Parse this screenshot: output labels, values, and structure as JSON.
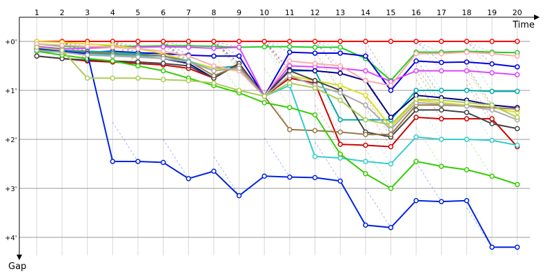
{
  "chart_data": {
    "type": "line",
    "xlabel": "Time",
    "ylabel": "Gap",
    "x_ticks": [
      "1",
      "2",
      "3",
      "4",
      "5",
      "6",
      "7",
      "8",
      "9",
      "10",
      "11",
      "12",
      "13",
      "14",
      "15",
      "16",
      "17",
      "18",
      "19",
      "20"
    ],
    "y_ticks": [
      "+0'",
      "+1'",
      "+2'",
      "+3'",
      "+4'"
    ],
    "ylim": [
      0,
      4.4
    ],
    "grid": true,
    "legend": "none",
    "series": [
      {
        "color": "#ff0000",
        "values": [
          0.0,
          0.0,
          0.0,
          0.0,
          0.0,
          0.0,
          0.0,
          0.0,
          0.0,
          0.0,
          0.0,
          0.0,
          0.0,
          0.0,
          0.0,
          0.0,
          0.0,
          0.0,
          0.0,
          0.0
        ]
      },
      {
        "color": "#22cc22",
        "values": [
          0.05,
          0.1,
          0.11,
          0.1,
          0.1,
          0.09,
          0.09,
          0.1,
          0.12,
          0.11,
          0.11,
          0.12,
          0.12,
          0.35,
          0.8,
          0.22,
          0.22,
          0.2,
          0.22,
          0.23
        ]
      },
      {
        "color": "#0000dd",
        "values": [
          0.15,
          0.2,
          0.22,
          0.2,
          0.23,
          0.25,
          0.28,
          0.3,
          0.3,
          1.12,
          0.22,
          0.24,
          0.24,
          0.3,
          1.0,
          0.4,
          0.43,
          0.42,
          0.46,
          0.52
        ]
      },
      {
        "color": "#dd44ff",
        "values": [
          0.1,
          0.15,
          0.14,
          0.12,
          0.12,
          0.11,
          0.12,
          0.14,
          0.12,
          1.12,
          0.5,
          0.52,
          0.55,
          0.6,
          0.82,
          0.6,
          0.6,
          0.6,
          0.64,
          0.68
        ]
      },
      {
        "color": "#00aaaa",
        "values": [
          0.12,
          0.18,
          0.2,
          0.22,
          0.25,
          0.3,
          0.4,
          0.55,
          0.5,
          1.12,
          0.6,
          0.6,
          1.6,
          1.6,
          1.6,
          1.0,
          1.0,
          1.0,
          1.02,
          1.02
        ]
      },
      {
        "color": "#000088",
        "values": [
          0.15,
          0.22,
          0.25,
          0.25,
          0.3,
          0.35,
          0.45,
          0.75,
          0.45,
          1.12,
          0.58,
          0.6,
          0.65,
          0.8,
          1.55,
          1.1,
          1.15,
          1.2,
          1.3,
          1.35
        ]
      },
      {
        "color": "#dddd22",
        "values": [
          0.0,
          0.02,
          0.05,
          0.08,
          0.15,
          0.25,
          0.4,
          0.55,
          0.6,
          1.12,
          0.7,
          0.8,
          0.9,
          1.1,
          1.75,
          1.2,
          1.25,
          1.3,
          1.35,
          1.45
        ]
      },
      {
        "color": "#cc0000",
        "values": [
          0.3,
          0.35,
          0.4,
          0.42,
          0.45,
          0.48,
          0.55,
          0.75,
          0.45,
          1.12,
          0.75,
          0.85,
          2.1,
          2.12,
          2.15,
          1.55,
          1.58,
          1.58,
          1.58,
          2.15
        ]
      },
      {
        "color": "#444444",
        "values": [
          0.3,
          0.35,
          0.38,
          0.4,
          0.42,
          0.45,
          0.5,
          0.75,
          0.45,
          1.12,
          0.6,
          0.8,
          1.0,
          1.85,
          1.95,
          1.4,
          1.4,
          1.45,
          1.68,
          1.78
        ]
      },
      {
        "color": "#997744",
        "values": [
          0.15,
          0.2,
          0.22,
          0.25,
          0.28,
          0.3,
          0.4,
          0.7,
          0.5,
          1.12,
          1.8,
          1.82,
          1.85,
          1.9,
          1.9,
          1.3,
          1.3,
          1.32,
          1.35,
          1.38
        ]
      },
      {
        "color": "#33cccc",
        "values": [
          0.2,
          0.22,
          0.25,
          0.28,
          0.3,
          0.35,
          0.4,
          0.6,
          0.55,
          1.12,
          0.9,
          2.35,
          2.38,
          2.45,
          2.5,
          1.95,
          2.0,
          2.0,
          2.02,
          2.12
        ]
      },
      {
        "color": "#33cc00",
        "values": [
          0.2,
          0.28,
          0.35,
          0.4,
          0.5,
          0.6,
          0.75,
          0.9,
          1.05,
          1.25,
          1.35,
          1.5,
          2.3,
          2.7,
          3.0,
          2.45,
          2.55,
          2.62,
          2.75,
          2.92
        ]
      },
      {
        "color": "#0022dd",
        "values": [
          0.15,
          0.2,
          0.25,
          2.45,
          2.45,
          2.47,
          2.8,
          2.65,
          3.15,
          2.75,
          2.77,
          2.78,
          2.85,
          3.75,
          3.8,
          3.25,
          3.27,
          3.25,
          4.2,
          4.2
        ]
      },
      {
        "color": "#ffaaaa",
        "values": [
          0.05,
          0.08,
          0.1,
          0.12,
          0.15,
          0.2,
          0.3,
          0.5,
          0.6,
          1.12,
          0.4,
          0.45,
          0.5,
          0.8,
          0.9,
          0.25,
          0.25,
          0.22,
          0.25,
          0.3
        ]
      },
      {
        "color": "#aaaaaa",
        "values": [
          0.18,
          0.22,
          0.28,
          0.3,
          0.32,
          0.35,
          0.42,
          0.6,
          0.55,
          1.12,
          0.7,
          0.9,
          1.05,
          1.3,
          1.8,
          1.25,
          1.28,
          1.32,
          1.4,
          1.6
        ]
      },
      {
        "color": "#aacc55",
        "values": [
          0.12,
          0.18,
          0.75,
          0.75,
          0.75,
          0.78,
          0.8,
          0.85,
          1.0,
          1.12,
          0.85,
          0.95,
          1.2,
          1.6,
          1.7,
          1.18,
          1.2,
          1.25,
          1.3,
          1.55
        ]
      }
    ]
  }
}
